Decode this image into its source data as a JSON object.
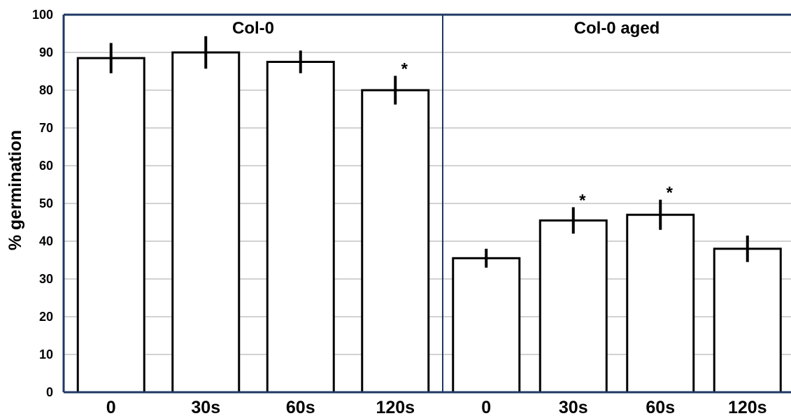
{
  "chart_data": {
    "type": "bar",
    "ylabel": "% germination",
    "ylim": [
      0,
      100
    ],
    "yticks": [
      0,
      10,
      20,
      30,
      40,
      50,
      60,
      70,
      80,
      90,
      100
    ],
    "grid": true,
    "colors": {
      "frame": "#1f3864",
      "grid": "#a6a6a6",
      "bar_fill": "#ffffff",
      "bar_stroke": "#000000",
      "error": "#000000"
    },
    "panels": [
      {
        "title": "Col-0",
        "categories": [
          "0",
          "30s",
          "60s",
          "120s"
        ],
        "values": [
          88.5,
          90,
          87.5,
          80
        ],
        "errors": [
          4,
          4.3,
          3,
          3.8
        ],
        "significant": [
          false,
          false,
          false,
          true
        ]
      },
      {
        "title": "Col-0 aged",
        "categories": [
          "0",
          "30s",
          "60s",
          "120s"
        ],
        "values": [
          35.5,
          45.5,
          47,
          38
        ],
        "errors": [
          2.5,
          3.5,
          4,
          3.5
        ],
        "significant": [
          false,
          true,
          true,
          false
        ]
      }
    ],
    "significance_marker": "*"
  }
}
